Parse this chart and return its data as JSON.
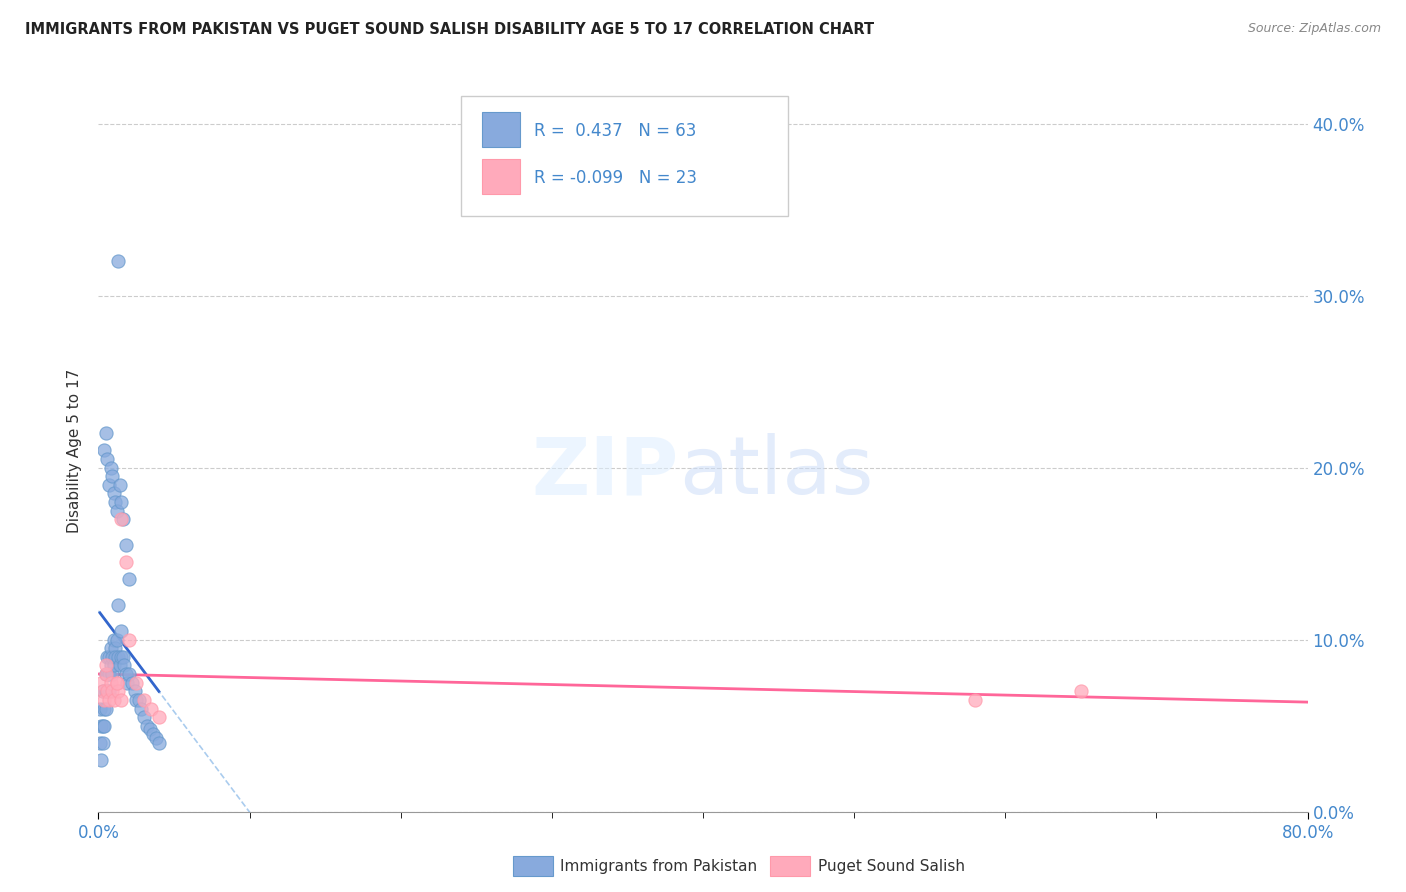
{
  "title": "IMMIGRANTS FROM PAKISTAN VS PUGET SOUND SALISH DISABILITY AGE 5 TO 17 CORRELATION CHART",
  "source": "Source: ZipAtlas.com",
  "ylabel": "Disability Age 5 to 17",
  "xlim": [
    0,
    0.8
  ],
  "ylim": [
    0,
    0.42
  ],
  "legend1_label": "Immigrants from Pakistan",
  "legend2_label": "Puget Sound Salish",
  "r1": 0.437,
  "n1": 63,
  "r2": -0.099,
  "n2": 23,
  "blue_color": "#88AADD",
  "blue_edge": "#6699CC",
  "pink_color": "#FFAABB",
  "pink_edge": "#FF99AA",
  "blue_line_color": "#3366CC",
  "pink_line_color": "#FF6699",
  "dash_color": "#AACCEE",
  "grid_color": "#CCCCCC",
  "background_color": "#ffffff",
  "right_tick_color": "#4488CC",
  "bottom_tick_color": "#4488CC",
  "blue_x": [
    0.001,
    0.001,
    0.002,
    0.002,
    0.003,
    0.003,
    0.003,
    0.004,
    0.004,
    0.005,
    0.005,
    0.005,
    0.006,
    0.006,
    0.006,
    0.007,
    0.007,
    0.007,
    0.008,
    0.008,
    0.009,
    0.009,
    0.01,
    0.01,
    0.011,
    0.011,
    0.012,
    0.013,
    0.014,
    0.015,
    0.015,
    0.016,
    0.017,
    0.018,
    0.019,
    0.02,
    0.022,
    0.024,
    0.025,
    0.027,
    0.028,
    0.03,
    0.032,
    0.034,
    0.036,
    0.038,
    0.04,
    0.004,
    0.005,
    0.006,
    0.007,
    0.008,
    0.009,
    0.01,
    0.011,
    0.012,
    0.013,
    0.014,
    0.015,
    0.016,
    0.018,
    0.02,
    0.013
  ],
  "blue_y": [
    0.06,
    0.04,
    0.05,
    0.03,
    0.07,
    0.05,
    0.04,
    0.06,
    0.05,
    0.08,
    0.07,
    0.06,
    0.09,
    0.08,
    0.07,
    0.09,
    0.08,
    0.07,
    0.095,
    0.085,
    0.09,
    0.08,
    0.1,
    0.085,
    0.095,
    0.09,
    0.1,
    0.09,
    0.085,
    0.105,
    0.09,
    0.09,
    0.085,
    0.08,
    0.075,
    0.08,
    0.075,
    0.07,
    0.065,
    0.065,
    0.06,
    0.055,
    0.05,
    0.048,
    0.045,
    0.043,
    0.04,
    0.21,
    0.22,
    0.205,
    0.19,
    0.2,
    0.195,
    0.185,
    0.18,
    0.175,
    0.32,
    0.19,
    0.18,
    0.17,
    0.155,
    0.135,
    0.12
  ],
  "pink_x": [
    0.002,
    0.003,
    0.004,
    0.005,
    0.006,
    0.007,
    0.008,
    0.009,
    0.01,
    0.012,
    0.013,
    0.015,
    0.018,
    0.02,
    0.025,
    0.03,
    0.035,
    0.04,
    0.005,
    0.012,
    0.015,
    0.58,
    0.65
  ],
  "pink_y": [
    0.075,
    0.07,
    0.065,
    0.08,
    0.07,
    0.065,
    0.075,
    0.07,
    0.065,
    0.075,
    0.07,
    0.17,
    0.145,
    0.1,
    0.075,
    0.065,
    0.06,
    0.055,
    0.085,
    0.075,
    0.065,
    0.065,
    0.07
  ]
}
